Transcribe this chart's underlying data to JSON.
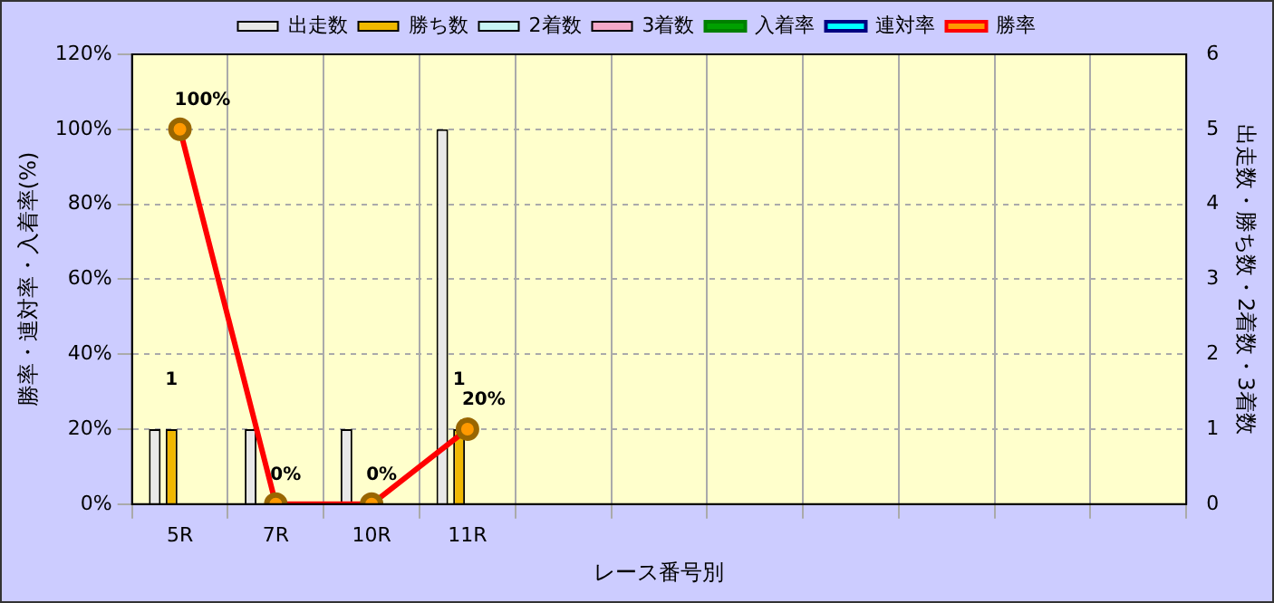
{
  "chart_data": {
    "type": "bar",
    "xlabel": "レース番号別",
    "ylabel": "勝率・連対率・入着率(%)",
    "y2label": "出走数・勝ち数・2着数・3着数",
    "categories": [
      "5R",
      "7R",
      "10R",
      "11R",
      null,
      null,
      null,
      null,
      null,
      null,
      null
    ],
    "series": [
      {
        "name": "出走数",
        "axis": "y2",
        "color": "#e8e8e8",
        "values": [
          1,
          1,
          1,
          5,
          null,
          null,
          null,
          null,
          null,
          null,
          null
        ]
      },
      {
        "name": "勝ち数",
        "axis": "y2",
        "color": "#f0b800",
        "values": [
          1,
          0,
          0,
          1,
          null,
          null,
          null,
          null,
          null,
          null,
          null
        ],
        "value_labels": [
          "1",
          null,
          null,
          "1",
          null,
          null,
          null,
          null,
          null,
          null,
          null
        ]
      },
      {
        "name": "2着数",
        "axis": "y2",
        "color": "#c8f4f4",
        "values": [
          0,
          0,
          0,
          0,
          null,
          null,
          null,
          null,
          null,
          null,
          null
        ]
      },
      {
        "name": "3着数",
        "axis": "y2",
        "color": "#f4a8c8",
        "values": [
          0,
          0,
          0,
          0,
          null,
          null,
          null,
          null,
          null,
          null,
          null
        ]
      },
      {
        "name": "入着率",
        "type": "line",
        "color": "#008000",
        "marker": "triangle",
        "values": [
          null,
          null,
          null,
          null,
          null,
          null,
          null,
          null,
          null,
          null,
          null
        ]
      },
      {
        "name": "連対率",
        "type": "line",
        "color": "#000080",
        "marker": "diamond",
        "values": [
          null,
          null,
          null,
          null,
          null,
          null,
          null,
          null,
          null,
          null,
          null
        ]
      },
      {
        "name": "勝率",
        "type": "line",
        "color": "#ff0000",
        "marker": "circle",
        "values": [
          100,
          0,
          0,
          20,
          null,
          null,
          null,
          null,
          null,
          null,
          null
        ],
        "value_labels": [
          "100%",
          "0%",
          "0%",
          "20%",
          null,
          null,
          null,
          null,
          null,
          null,
          null
        ]
      }
    ],
    "ylim": [
      0,
      120
    ],
    "yticks": [
      {
        "value": 0,
        "label": "0%"
      },
      {
        "value": 20,
        "label": "20%"
      },
      {
        "value": 40,
        "label": "40%"
      },
      {
        "value": 60,
        "label": "60%"
      },
      {
        "value": 80,
        "label": "80%"
      },
      {
        "value": 100,
        "label": "100%"
      },
      {
        "value": 120,
        "label": "120%"
      }
    ],
    "y2lim": [
      0,
      6
    ],
    "y2ticks": [
      0,
      1,
      2,
      3,
      4,
      5,
      6
    ],
    "grid": true,
    "legend": "top"
  }
}
